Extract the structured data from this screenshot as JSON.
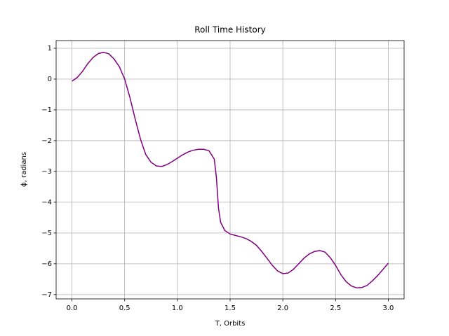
{
  "chart_data": {
    "type": "line",
    "title": "Roll Time History",
    "x_label": "T, Orbits",
    "y_label": "ϕ, radians",
    "x": [
      0,
      0.05,
      0.1,
      0.15,
      0.2,
      0.25,
      0.3,
      0.35,
      0.4,
      0.45,
      0.5,
      0.55,
      0.6,
      0.65,
      0.7,
      0.75,
      0.8,
      0.85,
      0.9,
      0.95,
      1.0,
      1.05,
      1.1,
      1.15,
      1.2,
      1.25,
      1.3,
      1.35,
      1.37,
      1.39,
      1.41,
      1.45,
      1.5,
      1.55,
      1.6,
      1.65,
      1.7,
      1.75,
      1.8,
      1.85,
      1.9,
      1.95,
      2.0,
      2.05,
      2.1,
      2.15,
      2.2,
      2.25,
      2.3,
      2.35,
      2.4,
      2.45,
      2.5,
      2.55,
      2.6,
      2.65,
      2.7,
      2.75,
      2.8,
      2.85,
      2.9,
      2.95,
      3.0
    ],
    "series": [
      {
        "name": "roll",
        "color": "#800080",
        "values": [
          -0.07,
          0.05,
          0.25,
          0.5,
          0.7,
          0.83,
          0.87,
          0.82,
          0.65,
          0.4,
          0.0,
          -0.6,
          -1.3,
          -1.95,
          -2.45,
          -2.7,
          -2.82,
          -2.84,
          -2.78,
          -2.68,
          -2.57,
          -2.46,
          -2.37,
          -2.31,
          -2.28,
          -2.28,
          -2.33,
          -2.6,
          -3.2,
          -4.2,
          -4.65,
          -4.92,
          -5.03,
          -5.08,
          -5.12,
          -5.18,
          -5.27,
          -5.4,
          -5.6,
          -5.82,
          -6.05,
          -6.23,
          -6.32,
          -6.3,
          -6.18,
          -6.0,
          -5.82,
          -5.68,
          -5.6,
          -5.57,
          -5.62,
          -5.8,
          -6.05,
          -6.35,
          -6.58,
          -6.72,
          -6.78,
          -6.77,
          -6.7,
          -6.55,
          -6.38,
          -6.18,
          -5.98
        ]
      }
    ],
    "xlim": [
      -0.15,
      3.15
    ],
    "xticks": [
      {
        "value": 0,
        "label": "0.0"
      },
      0.5,
      {
        "value": 1,
        "label": "1.0"
      },
      1.5,
      {
        "value": 2,
        "label": "2.0"
      },
      2.5,
      {
        "value": 3,
        "label": "3.0"
      }
    ],
    "ylim": [
      -7.14,
      1.25
    ],
    "yticks": [
      {
        "value": -7,
        "label": "−7"
      },
      {
        "value": -6,
        "label": "−6"
      },
      {
        "value": -5,
        "label": "−5"
      },
      {
        "value": -4,
        "label": "−4"
      },
      {
        "value": -3,
        "label": "−3"
      },
      {
        "value": -2,
        "label": "−2"
      },
      {
        "value": -1,
        "label": "−1"
      },
      0,
      1
    ],
    "grid": true
  }
}
